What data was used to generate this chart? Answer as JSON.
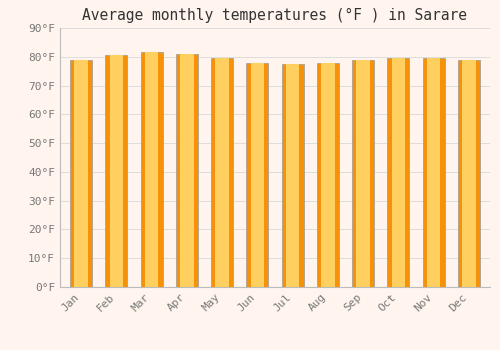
{
  "title": "Average monthly temperatures (°F ) in Sarare",
  "months": [
    "Jan",
    "Feb",
    "Mar",
    "Apr",
    "May",
    "Jun",
    "Jul",
    "Aug",
    "Sep",
    "Oct",
    "Nov",
    "Dec"
  ],
  "values": [
    79,
    80.5,
    81.5,
    81,
    79.5,
    78,
    77.5,
    78,
    79,
    79.5,
    79.5,
    79
  ],
  "ylim": [
    0,
    90
  ],
  "yticks": [
    0,
    10,
    20,
    30,
    40,
    50,
    60,
    70,
    80,
    90
  ],
  "ytick_labels": [
    "0°F",
    "10°F",
    "20°F",
    "30°F",
    "40°F",
    "50°F",
    "60°F",
    "70°F",
    "80°F",
    "90°F"
  ],
  "bar_color_center": "#FFD060",
  "bar_color_edge": "#F5920A",
  "bar_border_color": "#999999",
  "background_color": "#FFF5EE",
  "grid_color": "#DDDDDD",
  "title_fontsize": 10.5,
  "tick_fontsize": 8,
  "tick_color": "#777777",
  "font_family": "monospace",
  "bar_width": 0.62
}
